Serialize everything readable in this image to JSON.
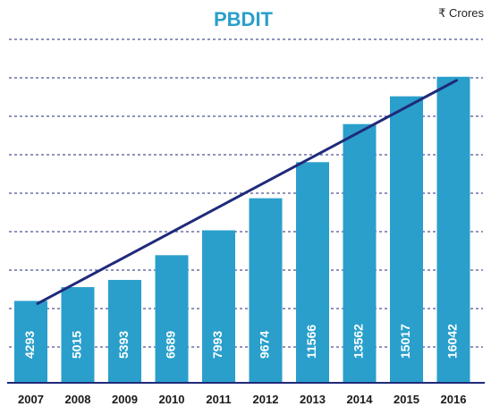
{
  "chart_data": {
    "type": "bar",
    "title": "PBDIT",
    "unit_label": "₹ Crores",
    "categories": [
      "2007",
      "2008",
      "2009",
      "2010",
      "2011",
      "2012",
      "2013",
      "2014",
      "2015",
      "2016"
    ],
    "values": [
      4293,
      5015,
      5393,
      6689,
      7993,
      9674,
      11566,
      13562,
      15017,
      16042
    ],
    "trendline": true,
    "ylim": [
      0,
      17000
    ],
    "grid": "dashed horizontal",
    "colors": {
      "bar": "#2a9fcb",
      "title": "#2a9fcb",
      "trendline": "#1f2a7a",
      "label": "#ffffff",
      "grid": "#1f2a7a",
      "axis": "#1f2a7a"
    }
  }
}
